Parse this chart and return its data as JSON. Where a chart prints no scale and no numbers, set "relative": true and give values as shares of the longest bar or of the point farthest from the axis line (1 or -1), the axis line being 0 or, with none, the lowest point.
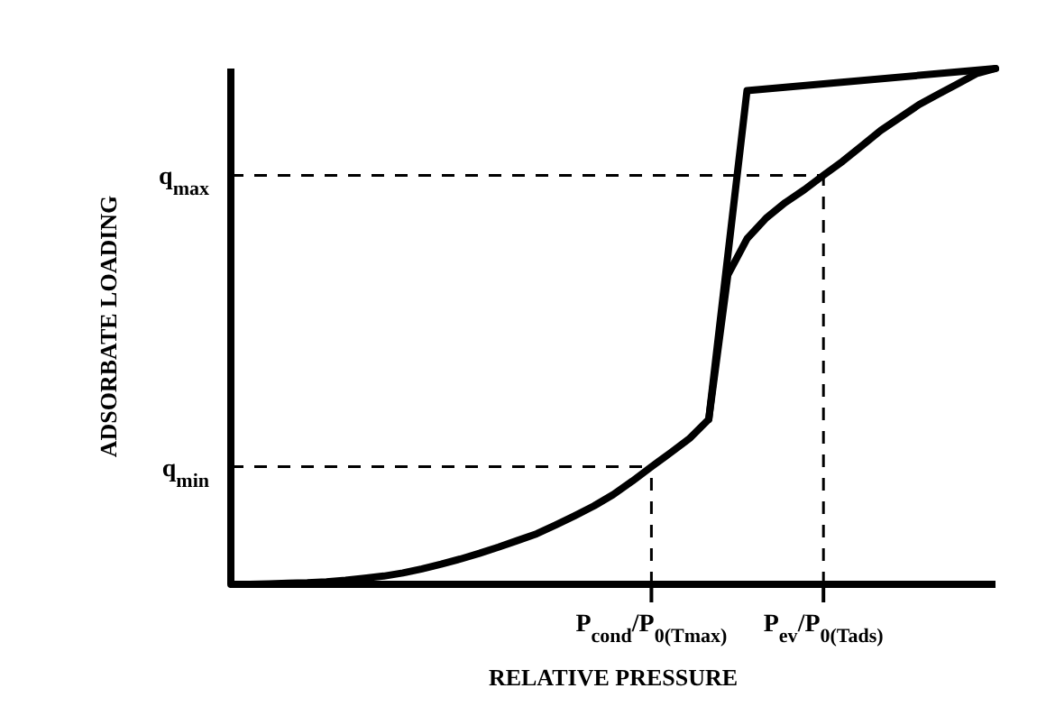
{
  "chart_data": {
    "type": "line",
    "relative": true,
    "xlabel": "RELATIVE PRESSURE",
    "ylabel": "ADSORBATE LOADING",
    "categories": [
      null,
      null,
      null,
      null,
      null,
      null,
      null,
      null,
      null,
      null,
      null,
      null,
      null,
      null,
      null,
      null,
      null,
      null,
      null,
      null,
      null,
      null,
      "P$_{cond}$/P$_{0(Tmax)}$",
      null,
      null,
      null,
      null,
      null,
      null,
      null,
      null,
      "P$_{ev}$/P$_{0(Tads)}$",
      null,
      null,
      null,
      null,
      null,
      null,
      null,
      null,
      null
    ],
    "marker": "none",
    "ref_lines": [
      {
        "axis": "y",
        "value": 0.228,
        "label": "q$_{min}$",
        "line_style": "dashed",
        "color": "#000000"
      },
      {
        "axis": "y",
        "value": 0.793,
        "label": "q$_{max}$",
        "line_style": "dashed",
        "color": "#000000"
      },
      {
        "axis": "x",
        "value": "P$_{cond}$/P$_{0(Tmax)}$",
        "line_style": "dashed",
        "color": "#000000"
      },
      {
        "axis": "x",
        "value": "P$_{ev}$/P$_{0(Tads)}$",
        "line_style": "dashed",
        "color": "#000000"
      }
    ],
    "series": [
      {
        "color": "#000000",
        "values": [
          0,
          0,
          0.001,
          0.002,
          0.003,
          0.005,
          0.008,
          0.012,
          0.016,
          0.022,
          0.03,
          0.039,
          0.049,
          0.06,
          0.072,
          0.085,
          0.098,
          0.115,
          0.133,
          0.152,
          0.174,
          0.2,
          0.228,
          0.255,
          0.283,
          0.32,
          0.6,
          0.67,
          0.71,
          0.74,
          0.765,
          0.793,
          0.82,
          0.85,
          0.88,
          0.905,
          0.93,
          0.95,
          0.97,
          0.99,
          1
        ]
      },
      {
        "color": "#000000",
        "values": [
          null,
          null,
          null,
          null,
          null,
          null,
          null,
          null,
          null,
          null,
          null,
          null,
          null,
          null,
          null,
          null,
          null,
          null,
          null,
          null,
          null,
          null,
          null,
          null,
          null,
          0.32,
          null,
          0.957,
          null,
          null,
          null,
          null,
          null,
          null,
          null,
          null,
          null,
          null,
          null,
          null,
          1
        ]
      }
    ]
  }
}
